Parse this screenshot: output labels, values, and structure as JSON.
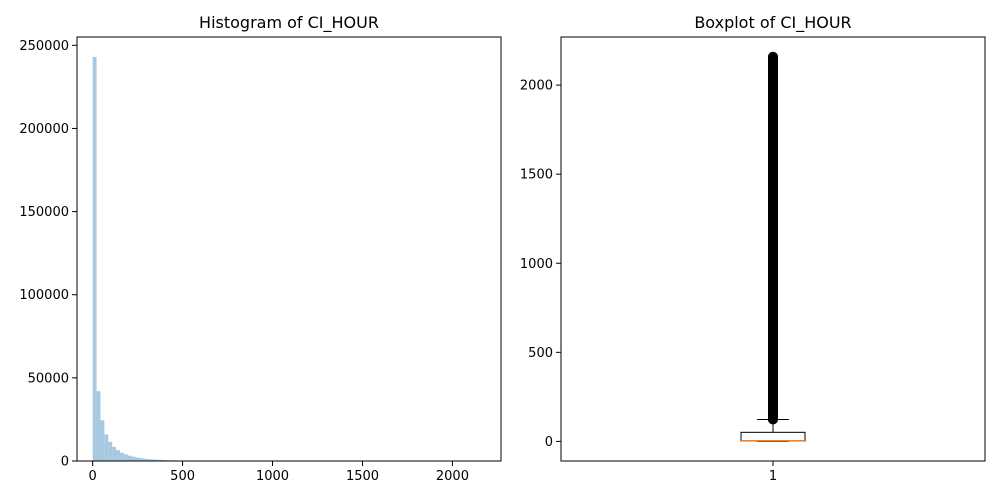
{
  "chart_data": [
    {
      "type": "histogram",
      "title": "Histogram of CI_HOUR",
      "xlabel": "",
      "ylabel": "",
      "xlim": [
        -87,
        2270
      ],
      "ylim": [
        0,
        255000
      ],
      "xticks": [
        0,
        500,
        1000,
        1500,
        2000
      ],
      "yticks": [
        0,
        50000,
        100000,
        150000,
        200000,
        250000
      ],
      "bar_color": "#a6c8e0",
      "bin_width": 21.7,
      "bins_start": 0,
      "counts": [
        243000,
        42000,
        24500,
        16000,
        11500,
        8500,
        6500,
        5000,
        4000,
        3200,
        2600,
        2100,
        1700,
        1400,
        1150,
        950,
        800,
        680,
        570,
        480,
        400,
        340,
        290,
        250,
        210,
        180,
        155,
        135,
        118,
        105,
        95,
        86,
        78,
        72,
        66,
        61,
        57,
        53,
        50,
        47,
        44,
        42,
        40,
        38,
        36,
        34,
        33,
        32,
        31,
        30,
        29,
        28,
        27,
        26,
        25,
        24,
        24,
        23,
        23,
        22,
        22,
        21,
        21,
        20,
        20,
        20,
        19,
        19,
        19,
        18,
        18,
        18,
        18,
        17,
        17,
        17,
        17,
        16,
        16,
        16,
        16,
        16,
        15,
        15,
        15,
        15,
        15,
        15,
        14,
        14,
        14,
        14,
        14,
        14,
        14,
        13,
        13,
        13,
        13,
        13
      ]
    },
    {
      "type": "boxplot",
      "title": "Boxplot of CI_HOUR",
      "xlabel": "",
      "ylabel": "",
      "xticks": [
        "1"
      ],
      "ylim": [
        -110,
        2270
      ],
      "yticks": [
        0,
        500,
        1000,
        1500,
        2000
      ],
      "box": {
        "min": 0,
        "q1": 2,
        "median": 4,
        "q3": 51,
        "max": 123
      },
      "outliers_range": [
        123,
        2160
      ],
      "box_color": "#000000",
      "median_color": "#ff7f0e",
      "outlier_color": "#000000"
    }
  ]
}
